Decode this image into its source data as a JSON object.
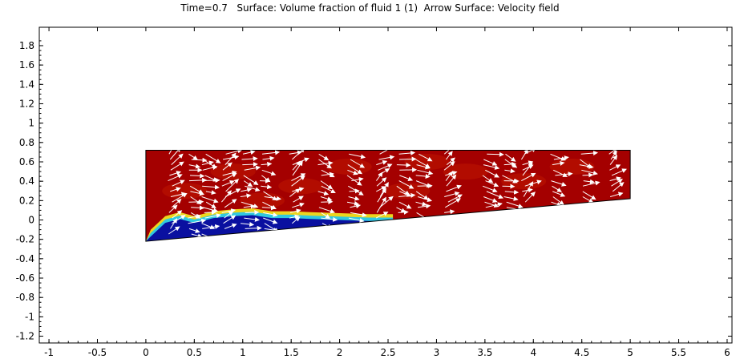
{
  "title": "Time=0.7   Surface: Volume fraction of fluid 1 (1)  Arrow Surface: Velocity field",
  "chart_data": {
    "type": "heatmap",
    "title": "Time=0.7   Surface: Volume fraction of fluid 1 (1)  Arrow Surface: Velocity field",
    "xlabel": "",
    "ylabel": "",
    "xlim": [
      -1.1,
      6.05
    ],
    "ylim": [
      -1.27,
      1.99
    ],
    "x_ticks": [
      "-1",
      "-0.5",
      "0",
      "0.5",
      "1",
      "1.5",
      "2",
      "2.5",
      "3",
      "3.5",
      "4",
      "4.5",
      "5",
      "5.5",
      "6"
    ],
    "y_ticks": [
      "1.8",
      "1.6",
      "1.4",
      "1.2",
      "1",
      "0.8",
      "0.6",
      "0.4",
      "0.2",
      "0",
      "-0.2",
      "-0.4",
      "-0.6",
      "-0.8",
      "-1",
      "-1.2"
    ],
    "grid": false,
    "domain_outline": [
      [
        0,
        0.72
      ],
      [
        5,
        0.72
      ],
      [
        5,
        0.22
      ],
      [
        0,
        -0.22
      ]
    ],
    "surface_colors": {
      "fluid_2": "#a40000",
      "interface": "#f0e020",
      "fluid_1": "#0a10a0"
    },
    "fluid_1_region": {
      "upper_boundary": [
        [
          0.05,
          -0.16
        ],
        [
          0.2,
          -0.02
        ],
        [
          0.35,
          0.02
        ],
        [
          0.5,
          -0.02
        ],
        [
          0.7,
          0.03
        ],
        [
          0.9,
          0.05
        ],
        [
          1.1,
          0.06
        ],
        [
          1.3,
          0.03
        ],
        [
          1.5,
          0.03
        ],
        [
          1.7,
          0.02
        ],
        [
          2.0,
          0.01
        ],
        [
          2.3,
          0.0
        ],
        [
          2.55,
          0.0
        ]
      ],
      "lower_boundary": [
        [
          0.0,
          -0.22
        ],
        [
          2.55,
          0.0
        ]
      ]
    },
    "arrow_columns_x": [
      0.25,
      0.45,
      0.6,
      0.8,
      1.0,
      1.2,
      1.5,
      1.8,
      2.1,
      2.4,
      2.6,
      2.8,
      3.1,
      3.5,
      3.7,
      3.9,
      4.2,
      4.5,
      4.8
    ]
  }
}
